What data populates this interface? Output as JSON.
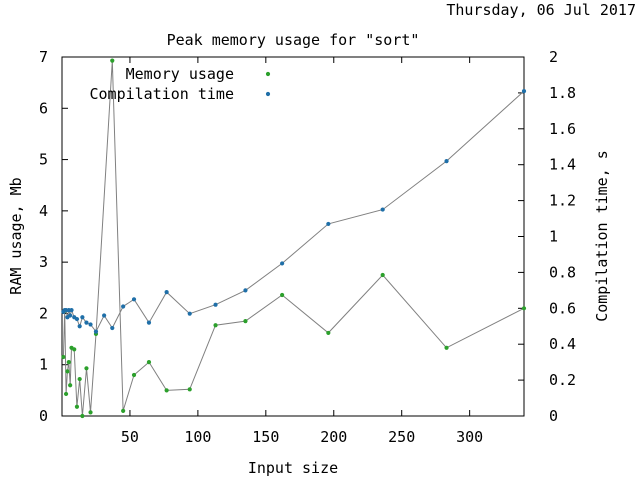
{
  "header": {
    "date": "Thursday, 06 Jul 2017"
  },
  "chart_data": {
    "type": "line",
    "title": "Peak memory usage for \"sort\"",
    "xlabel": "Input size",
    "ylabel": "RAM usage, Mb",
    "y2label": "Compilation time, s",
    "xlim": [
      0,
      340
    ],
    "ylim": [
      0,
      7
    ],
    "y2lim": [
      0,
      2
    ],
    "x_ticks": [
      50,
      100,
      150,
      200,
      250,
      300
    ],
    "y_ticks": [
      0,
      1,
      2,
      3,
      4,
      5,
      6,
      7
    ],
    "y2_ticks": [
      0,
      0.2,
      0.4,
      0.6,
      0.8,
      1,
      1.2,
      1.4,
      1.6,
      1.8,
      2
    ],
    "y2_tick_labels": [
      "0",
      "0.2",
      "0.4",
      "0.6",
      "0.8",
      "1",
      "1.2",
      "1.4",
      "1.6",
      "1.8",
      "2"
    ],
    "grid": false,
    "legend_position": "top-left",
    "series": [
      {
        "name": "Memory usage",
        "axis": "left",
        "color": "#2ca02c",
        "x": [
          1,
          2,
          3,
          4,
          5,
          6,
          7,
          9,
          11,
          13,
          15,
          18,
          21,
          25,
          37,
          45,
          53,
          64,
          77,
          94,
          113,
          135,
          162,
          196,
          236,
          283,
          340
        ],
        "y": [
          1.15,
          2.05,
          0.43,
          0.87,
          1.05,
          0.6,
          1.33,
          1.3,
          0.18,
          0.72,
          0.0,
          0.93,
          0.07,
          1.6,
          6.93,
          0.1,
          0.8,
          1.05,
          0.5,
          0.52,
          1.77,
          1.85,
          2.36,
          1.62,
          2.75,
          1.33,
          2.1
        ]
      },
      {
        "name": "Compilation time",
        "axis": "right",
        "color": "#1f6fa8",
        "x": [
          1,
          2,
          3,
          4,
          5,
          6,
          7,
          9,
          11,
          13,
          15,
          18,
          21,
          25,
          31,
          37,
          45,
          53,
          64,
          77,
          94,
          113,
          135,
          162,
          196,
          236,
          283,
          340
        ],
        "y": [
          0.58,
          0.59,
          0.59,
          0.55,
          0.59,
          0.56,
          0.59,
          0.55,
          0.54,
          0.5,
          0.55,
          0.52,
          0.51,
          0.47,
          0.56,
          0.49,
          0.61,
          0.65,
          0.52,
          0.69,
          0.57,
          0.62,
          0.7,
          0.85,
          1.07,
          1.15,
          1.42,
          1.81
        ]
      }
    ]
  }
}
